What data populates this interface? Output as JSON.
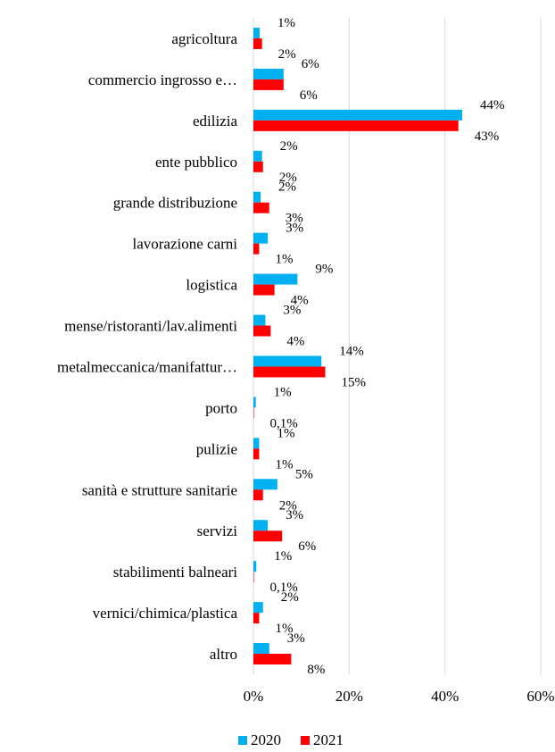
{
  "chart_data": {
    "type": "bar",
    "orientation": "horizontal",
    "categories": [
      "agricoltura",
      "commercio ingrosso e…",
      "edilizia",
      "ente pubblico",
      "grande distribuzione",
      "lavorazione carni",
      "logistica",
      "mense/ristoranti/lav.alimenti",
      "metalmeccanica/manifattur…",
      "porto",
      "pulizie",
      "sanità e strutture sanitarie",
      "servizi",
      "stabilimenti balneari",
      "vernici/chimica/plastica",
      "altro"
    ],
    "series": [
      {
        "name": "2020",
        "color": "#00b0f0",
        "values": [
          1.3,
          6.3,
          43.6,
          1.8,
          1.5,
          3.0,
          9.2,
          2.5,
          14.2,
          0.5,
          1.2,
          5.0,
          3.0,
          0.6,
          2.0,
          3.3
        ],
        "labels": [
          "1%",
          "6%",
          "44%",
          "2%",
          "2%",
          "3%",
          "9%",
          "3%",
          "14%",
          "1%",
          "1%",
          "5%",
          "3%",
          "1%",
          "2%",
          "3%"
        ]
      },
      {
        "name": "2021",
        "color": "#ff0000",
        "values": [
          1.8,
          6.3,
          42.8,
          2.0,
          3.3,
          1.2,
          4.4,
          3.6,
          15.0,
          0.1,
          1.2,
          2.0,
          6.0,
          0.1,
          1.2,
          7.9
        ],
        "labels": [
          "2%",
          "6%",
          "43%",
          "2%",
          "3%",
          "1%",
          "4%",
          "4%",
          "15%",
          "0,1%",
          "1%",
          "2%",
          "6%",
          "0,1%",
          "1%",
          "8%"
        ]
      }
    ],
    "xlim": [
      0,
      60
    ],
    "xticks": [
      0,
      20,
      40,
      60
    ],
    "xtick_labels": [
      "0%",
      "20%",
      "40%",
      "60%"
    ],
    "grid": true,
    "legend_position": "bottom"
  }
}
